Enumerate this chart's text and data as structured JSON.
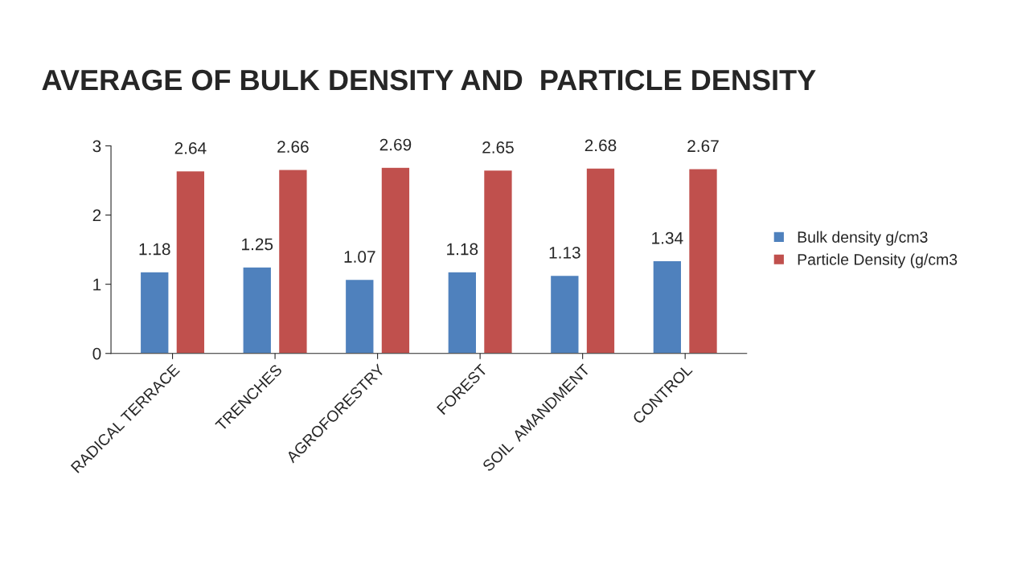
{
  "chart_data": {
    "type": "bar",
    "title": "AVERAGE OF BULK DENSITY AND  PARTICLE DENSITY",
    "categories": [
      "RADICAL TERRACE",
      "TRENCHES",
      "AGROFORESTRY",
      "FOREST",
      "SOIL  AMANDMENT",
      "CONTROL"
    ],
    "series": [
      {
        "name": "Bulk density g/cm3",
        "color": "#4f81bd",
        "values": [
          1.18,
          1.25,
          1.07,
          1.18,
          1.13,
          1.34
        ]
      },
      {
        "name": "Particle Density (g/cm3",
        "color": "#c0504d",
        "values": [
          2.64,
          2.66,
          2.69,
          2.65,
          2.68,
          2.67
        ]
      }
    ],
    "ylim": [
      0,
      3
    ],
    "yticks": [
      0,
      1,
      2,
      3
    ],
    "grid": false,
    "legend": "right",
    "data_labels": true
  }
}
